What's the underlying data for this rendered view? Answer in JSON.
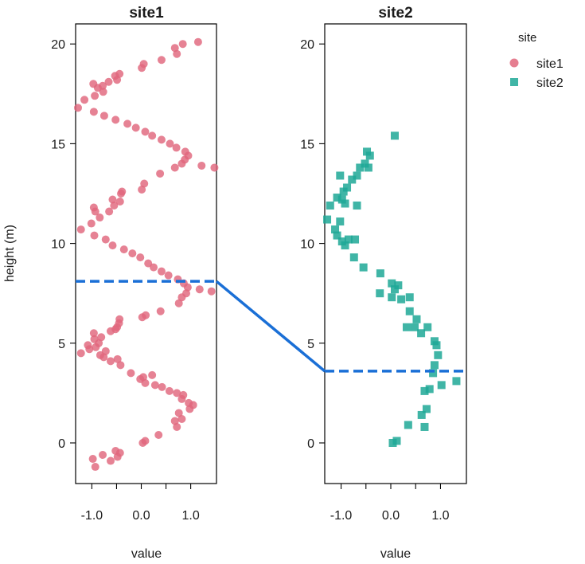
{
  "chart_data": {
    "type": "scatter",
    "ylabel": "height (m)",
    "ylim": [
      -2.0,
      21.5
    ],
    "xlim": [
      -1.35,
      1.5
    ],
    "xticks": [
      -1.0,
      0.0,
      1.0
    ],
    "xtick_labels": [
      "-1.0",
      "0.0",
      "1.0"
    ],
    "yticks": [
      0,
      5,
      10,
      15,
      20
    ],
    "ytick_labels": [
      "0",
      "5",
      "10",
      "15",
      "20"
    ],
    "grid": false,
    "legend": {
      "title": "site",
      "placement": "top-right",
      "entries": [
        {
          "label": "site1",
          "color": "#e0677d",
          "shape": "circle"
        },
        {
          "label": "site2",
          "color": "#1fa896",
          "shape": "square"
        }
      ]
    },
    "panels": [
      {
        "title": "site1",
        "xlabel": "value",
        "series": {
          "name": "site1",
          "color": "#e0677d",
          "shape": "circle",
          "x": [
            -0.93,
            -0.98,
            -0.62,
            -0.78,
            -0.48,
            -0.52,
            -0.43,
            0.03,
            0.08,
            0.35,
            0.72,
            0.68,
            0.82,
            0.76,
            0.98,
            1.05,
            0.96,
            0.82,
            0.85,
            0.72,
            0.57,
            0.42,
            0.28,
            0.08,
            -0.02,
            0.04,
            0.22,
            -0.21,
            -0.42,
            -0.62,
            -0.48,
            -0.76,
            -0.83,
            -0.72,
            -0.92,
            -1.05,
            -1.22,
            -1.08,
            -0.86,
            -0.95,
            -0.81,
            -0.96,
            -0.62,
            -0.52,
            -0.49,
            -0.45,
            -0.44,
            0.02,
            0.09,
            0.39,
            0.76,
            0.82,
            0.91,
            1.42,
            1.18,
            0.94,
            0.86,
            0.74,
            0.55,
            0.41,
            0.25,
            0.14,
            -0.02,
            -0.18,
            -0.35,
            -0.58,
            -0.72,
            -0.95,
            -1.22,
            -1.01,
            -0.84,
            -0.93,
            -0.96,
            -0.65,
            -0.55,
            -0.43,
            -0.58,
            -0.41,
            -0.39,
            0.01,
            0.06,
            0.38,
            0.68,
            0.82,
            0.88,
            1.48,
            1.22,
            0.95,
            0.89,
            0.71,
            0.58,
            0.41,
            0.22,
            0.08,
            -0.11,
            -0.28,
            -0.52,
            -0.75,
            -0.96,
            -1.28,
            -1.15,
            -0.94,
            -0.77,
            -0.88,
            -0.97,
            -0.78,
            -0.66,
            -0.49,
            -0.53,
            -0.44,
            0.01,
            0.05,
            0.41,
            0.72,
            0.68,
            0.84,
            1.15
          ],
          "y": [
            -1.2,
            -0.8,
            -0.9,
            -0.6,
            -0.7,
            -0.4,
            -0.5,
            0.0,
            0.1,
            0.4,
            0.8,
            1.1,
            1.2,
            1.5,
            1.7,
            1.9,
            2.0,
            2.2,
            2.4,
            2.5,
            2.6,
            2.8,
            2.9,
            3.0,
            3.2,
            3.3,
            3.4,
            3.5,
            3.9,
            4.1,
            4.2,
            4.3,
            4.4,
            4.6,
            4.8,
            4.7,
            4.5,
            4.9,
            5.0,
            5.2,
            5.3,
            5.5,
            5.6,
            5.7,
            5.8,
            6.0,
            6.2,
            6.3,
            6.4,
            6.6,
            7.0,
            7.3,
            7.5,
            7.6,
            7.7,
            7.8,
            8.0,
            8.2,
            8.4,
            8.6,
            8.8,
            9.0,
            9.3,
            9.5,
            9.7,
            9.9,
            10.2,
            10.4,
            10.7,
            11.0,
            11.3,
            11.6,
            11.8,
            11.6,
            11.9,
            12.1,
            12.2,
            12.5,
            12.6,
            12.7,
            13.0,
            13.5,
            13.8,
            14.0,
            14.2,
            13.8,
            13.9,
            14.4,
            14.6,
            14.8,
            15.0,
            15.2,
            15.4,
            15.6,
            15.8,
            16.0,
            16.2,
            16.4,
            16.6,
            16.8,
            17.2,
            17.4,
            17.6,
            17.8,
            18.0,
            17.9,
            18.1,
            18.2,
            18.4,
            18.5,
            18.8,
            19.0,
            19.2,
            19.5,
            19.8,
            20.0,
            20.1
          ],
          "reference_height": 8.1
        }
      },
      {
        "title": "site2",
        "xlabel": "value",
        "series": {
          "name": "site2",
          "color": "#1fa896",
          "shape": "square",
          "x": [
            0.04,
            0.12,
            0.35,
            0.68,
            0.62,
            0.72,
            0.68,
            0.78,
            0.85,
            1.02,
            1.32,
            0.88,
            0.95,
            0.92,
            0.88,
            0.74,
            0.61,
            0.48,
            0.32,
            0.38,
            0.52,
            0.38,
            0.21,
            0.02,
            0.15,
            0.02,
            -0.22,
            0.08,
            -0.21,
            -0.55,
            -0.74,
            -0.92,
            -0.98,
            -0.85,
            -1.08,
            -1.12,
            -1.28,
            -0.72,
            -1.02,
            -0.68,
            -0.92,
            -1.08,
            -0.95,
            -0.88,
            -0.98,
            -1.22,
            -1.02,
            -0.62,
            -0.52,
            -0.78,
            -0.68,
            -0.45,
            -0.42,
            -0.48,
            0.08
          ],
          "y": [
            0.0,
            0.1,
            0.9,
            0.8,
            1.4,
            1.7,
            2.6,
            2.7,
            3.5,
            2.9,
            3.1,
            3.9,
            4.4,
            4.9,
            5.1,
            5.8,
            5.5,
            5.8,
            5.8,
            6.6,
            6.2,
            7.3,
            7.2,
            7.3,
            7.9,
            8.0,
            7.5,
            7.7,
            8.5,
            8.8,
            9.3,
            9.9,
            10.1,
            10.2,
            10.4,
            10.7,
            11.2,
            10.2,
            11.1,
            11.9,
            12.0,
            12.3,
            12.6,
            12.8,
            12.2,
            11.9,
            13.4,
            13.8,
            14.0,
            13.2,
            13.4,
            13.8,
            14.4,
            14.6,
            15.4
          ],
          "reference_height": 3.6
        }
      }
    ],
    "connector": {
      "from_height": 8.1,
      "to_height": 3.6,
      "color": "#1a6fd6"
    }
  }
}
